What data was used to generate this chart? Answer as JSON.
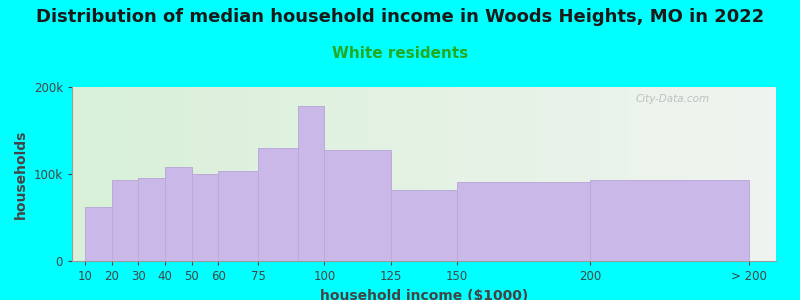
{
  "title": "Distribution of median household income in Woods Heights, MO in 2022",
  "subtitle": "White residents",
  "xlabel": "household income ($1000)",
  "ylabel": "households",
  "bar_heights": [
    62000,
    93000,
    95000,
    108000,
    100000,
    103000,
    130000,
    178000,
    128000,
    82000,
    91000,
    93000
  ],
  "bar_color": "#c9b8e8",
  "bar_edge_color": "#bbaad8",
  "background_color": "#00ffff",
  "plot_bg_gradient_left": "#d8f0d8",
  "plot_bg_gradient_right": "#f0f4f0",
  "title_fontsize": 13,
  "subtitle_fontsize": 11,
  "subtitle_color": "#22aa22",
  "axis_label_fontsize": 10,
  "tick_fontsize": 8.5,
  "ylim": [
    0,
    200000
  ],
  "ytick_labels": [
    "0",
    "100k",
    "200k"
  ],
  "watermark": "City-Data.com",
  "x_positions": [
    10,
    20,
    30,
    40,
    50,
    60,
    75,
    90,
    100,
    125,
    150,
    200
  ],
  "x_widths": [
    10,
    10,
    10,
    10,
    10,
    15,
    15,
    10,
    25,
    25,
    50,
    60
  ],
  "x_tick_positions": [
    10,
    20,
    30,
    40,
    50,
    60,
    75,
    100,
    125,
    150,
    200,
    260
  ],
  "x_tick_labels": [
    "10",
    "20",
    "30",
    "40",
    "50",
    "60",
    "75",
    "100",
    "125",
    "150",
    "200",
    "> 200"
  ],
  "xlim": [
    5,
    270
  ]
}
